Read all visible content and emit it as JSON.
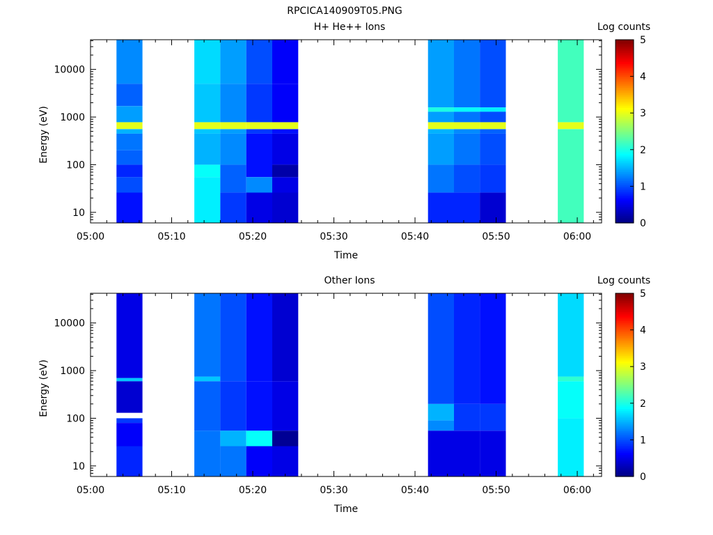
{
  "figure_title": "RPCICA140909T05.PNG",
  "chart_data": [
    {
      "type": "heatmap",
      "title": "H+ He++ Ions",
      "xlabel": "Time",
      "ylabel": "Energy (eV)",
      "xlim": [
        "05:00",
        "06:03"
      ],
      "ylim": [
        6,
        42000
      ],
      "yscale": "log",
      "x_ticks": [
        "05:00",
        "05:10",
        "05:20",
        "05:30",
        "05:40",
        "05:50",
        "06:00"
      ],
      "y_ticks": [
        "10",
        "100",
        "1000",
        "10000"
      ],
      "colorbar": {
        "label": "Log counts",
        "range": [
          0,
          5
        ],
        "ticks": [
          "0",
          "1",
          "2",
          "3",
          "4",
          "5"
        ],
        "colormap": "jet"
      },
      "columns": [
        {
          "start": "05:03:12",
          "end": "05:06:24",
          "bins": [
            {
              "emin": 6,
              "emax": 26,
              "value": 0.7
            },
            {
              "emin": 26,
              "emax": 55,
              "value": 1.0
            },
            {
              "emin": 55,
              "emax": 100,
              "value": 0.8
            },
            {
              "emin": 100,
              "emax": 200,
              "value": 1.1
            },
            {
              "emin": 200,
              "emax": 450,
              "value": 1.2
            },
            {
              "emin": 450,
              "emax": 560,
              "value": 1.5
            },
            {
              "emin": 560,
              "emax": 780,
              "value": 3.0
            },
            {
              "emin": 780,
              "emax": 1700,
              "value": 1.4
            },
            {
              "emin": 1700,
              "emax": 5000,
              "value": 1.1
            },
            {
              "emin": 5000,
              "emax": 42000,
              "value": 1.3
            }
          ]
        },
        {
          "start": "05:12:48",
          "end": "05:16:00",
          "bins": [
            {
              "emin": 6,
              "emax": 55,
              "value": 1.8
            },
            {
              "emin": 55,
              "emax": 100,
              "value": 1.9
            },
            {
              "emin": 100,
              "emax": 450,
              "value": 1.5
            },
            {
              "emin": 450,
              "emax": 560,
              "value": 1.6
            },
            {
              "emin": 560,
              "emax": 780,
              "value": 3.0
            },
            {
              "emin": 780,
              "emax": 5000,
              "value": 1.6
            },
            {
              "emin": 5000,
              "emax": 42000,
              "value": 1.7
            }
          ]
        },
        {
          "start": "05:16:00",
          "end": "05:19:12",
          "bins": [
            {
              "emin": 6,
              "emax": 26,
              "value": 0.9
            },
            {
              "emin": 26,
              "emax": 100,
              "value": 1.1
            },
            {
              "emin": 100,
              "emax": 450,
              "value": 1.3
            },
            {
              "emin": 450,
              "emax": 560,
              "value": 1.4
            },
            {
              "emin": 560,
              "emax": 780,
              "value": 3.0
            },
            {
              "emin": 780,
              "emax": 5000,
              "value": 1.3
            },
            {
              "emin": 5000,
              "emax": 42000,
              "value": 1.4
            }
          ]
        },
        {
          "start": "05:19:12",
          "end": "05:22:24",
          "bins": [
            {
              "emin": 6,
              "emax": 26,
              "value": 0.5
            },
            {
              "emin": 26,
              "emax": 55,
              "value": 1.3
            },
            {
              "emin": 55,
              "emax": 450,
              "value": 0.7
            },
            {
              "emin": 450,
              "emax": 560,
              "value": 0.9
            },
            {
              "emin": 560,
              "emax": 780,
              "value": 3.0
            },
            {
              "emin": 780,
              "emax": 5000,
              "value": 0.9
            },
            {
              "emin": 5000,
              "emax": 42000,
              "value": 1.0
            }
          ]
        },
        {
          "start": "05:22:24",
          "end": "05:25:36",
          "bins": [
            {
              "emin": 6,
              "emax": 26,
              "value": 0.4
            },
            {
              "emin": 26,
              "emax": 55,
              "value": 0.5
            },
            {
              "emin": 55,
              "emax": 100,
              "value": 0.2
            },
            {
              "emin": 100,
              "emax": 450,
              "value": 0.5
            },
            {
              "emin": 450,
              "emax": 560,
              "value": 0.7
            },
            {
              "emin": 560,
              "emax": 780,
              "value": 3.0
            },
            {
              "emin": 780,
              "emax": 5000,
              "value": 0.6
            },
            {
              "emin": 5000,
              "emax": 42000,
              "value": 0.6
            }
          ]
        },
        {
          "start": "05:41:36",
          "end": "05:44:48",
          "bins": [
            {
              "emin": 6,
              "emax": 26,
              "value": 0.8
            },
            {
              "emin": 26,
              "emax": 100,
              "value": 1.2
            },
            {
              "emin": 100,
              "emax": 450,
              "value": 1.4
            },
            {
              "emin": 450,
              "emax": 560,
              "value": 1.5
            },
            {
              "emin": 560,
              "emax": 780,
              "value": 3.0
            },
            {
              "emin": 780,
              "emax": 1300,
              "value": 1.4
            },
            {
              "emin": 1300,
              "emax": 1600,
              "value": 2.0
            },
            {
              "emin": 1600,
              "emax": 42000,
              "value": 1.4
            }
          ]
        },
        {
          "start": "05:44:48",
          "end": "05:48:00",
          "bins": [
            {
              "emin": 6,
              "emax": 26,
              "value": 0.8
            },
            {
              "emin": 26,
              "emax": 100,
              "value": 1.0
            },
            {
              "emin": 100,
              "emax": 450,
              "value": 1.2
            },
            {
              "emin": 450,
              "emax": 560,
              "value": 1.3
            },
            {
              "emin": 560,
              "emax": 780,
              "value": 3.0
            },
            {
              "emin": 780,
              "emax": 1300,
              "value": 1.2
            },
            {
              "emin": 1300,
              "emax": 1600,
              "value": 1.9
            },
            {
              "emin": 1600,
              "emax": 42000,
              "value": 1.2
            }
          ]
        },
        {
          "start": "05:48:00",
          "end": "05:51:12",
          "bins": [
            {
              "emin": 6,
              "emax": 26,
              "value": 0.4
            },
            {
              "emin": 26,
              "emax": 100,
              "value": 0.9
            },
            {
              "emin": 100,
              "emax": 450,
              "value": 1.0
            },
            {
              "emin": 450,
              "emax": 560,
              "value": 1.1
            },
            {
              "emin": 560,
              "emax": 780,
              "value": 3.0
            },
            {
              "emin": 780,
              "emax": 1300,
              "value": 1.0
            },
            {
              "emin": 1300,
              "emax": 1600,
              "value": 1.8
            },
            {
              "emin": 1600,
              "emax": 42000,
              "value": 1.0
            }
          ]
        },
        {
          "start": "05:57:36",
          "end": "06:00:48",
          "bins": [
            {
              "emin": 6,
              "emax": 560,
              "value": 2.2
            },
            {
              "emin": 560,
              "emax": 780,
              "value": 3.0
            },
            {
              "emin": 780,
              "emax": 42000,
              "value": 2.2
            }
          ]
        }
      ]
    },
    {
      "type": "heatmap",
      "title": "Other Ions",
      "xlabel": "Time",
      "ylabel": "Energy (eV)",
      "xlim": [
        "05:00",
        "06:03"
      ],
      "ylim": [
        6,
        42000
      ],
      "yscale": "log",
      "x_ticks": [
        "05:00",
        "05:10",
        "05:20",
        "05:30",
        "05:40",
        "05:50",
        "06:00"
      ],
      "y_ticks": [
        "10",
        "100",
        "1000",
        "10000"
      ],
      "colorbar": {
        "label": "Log counts",
        "range": [
          0,
          5
        ],
        "ticks": [
          "0",
          "1",
          "2",
          "3",
          "4",
          "5"
        ],
        "colormap": "jet"
      },
      "columns": [
        {
          "start": "05:03:12",
          "end": "05:06:24",
          "bins": [
            {
              "emin": 6,
              "emax": 26,
              "value": 0.8
            },
            {
              "emin": 26,
              "emax": 80,
              "value": 0.6
            },
            {
              "emin": 80,
              "emax": 100,
              "value": 0.9
            },
            {
              "emin": 130,
              "emax": 600,
              "value": 0.4
            },
            {
              "emin": 600,
              "emax": 700,
              "value": 1.6
            },
            {
              "emin": 700,
              "emax": 42000,
              "value": 0.5
            }
          ]
        },
        {
          "start": "05:12:48",
          "end": "05:16:00",
          "bins": [
            {
              "emin": 6,
              "emax": 55,
              "value": 1.2
            },
            {
              "emin": 55,
              "emax": 600,
              "value": 1.1
            },
            {
              "emin": 600,
              "emax": 750,
              "value": 1.6
            },
            {
              "emin": 750,
              "emax": 42000,
              "value": 1.2
            }
          ]
        },
        {
          "start": "05:16:00",
          "end": "05:19:12",
          "bins": [
            {
              "emin": 6,
              "emax": 26,
              "value": 1.2
            },
            {
              "emin": 26,
              "emax": 55,
              "value": 1.5
            },
            {
              "emin": 55,
              "emax": 600,
              "value": 0.9
            },
            {
              "emin": 600,
              "emax": 42000,
              "value": 1.0
            }
          ]
        },
        {
          "start": "05:19:12",
          "end": "05:22:24",
          "bins": [
            {
              "emin": 6,
              "emax": 26,
              "value": 0.6
            },
            {
              "emin": 26,
              "emax": 55,
              "value": 1.9
            },
            {
              "emin": 55,
              "emax": 600,
              "value": 0.7
            },
            {
              "emin": 600,
              "emax": 42000,
              "value": 0.7
            }
          ]
        },
        {
          "start": "05:22:24",
          "end": "05:25:36",
          "bins": [
            {
              "emin": 6,
              "emax": 26,
              "value": 0.5
            },
            {
              "emin": 26,
              "emax": 55,
              "value": 0.1
            },
            {
              "emin": 55,
              "emax": 600,
              "value": 0.5
            },
            {
              "emin": 600,
              "emax": 42000,
              "value": 0.4
            }
          ]
        },
        {
          "start": "05:41:36",
          "end": "05:44:48",
          "bins": [
            {
              "emin": 6,
              "emax": 55,
              "value": 0.5
            },
            {
              "emin": 55,
              "emax": 90,
              "value": 1.3
            },
            {
              "emin": 90,
              "emax": 200,
              "value": 1.5
            },
            {
              "emin": 200,
              "emax": 42000,
              "value": 1.0
            }
          ]
        },
        {
          "start": "05:44:48",
          "end": "05:48:00",
          "bins": [
            {
              "emin": 6,
              "emax": 55,
              "value": 0.5
            },
            {
              "emin": 55,
              "emax": 200,
              "value": 0.9
            },
            {
              "emin": 200,
              "emax": 42000,
              "value": 0.8
            }
          ]
        },
        {
          "start": "05:48:00",
          "end": "05:51:12",
          "bins": [
            {
              "emin": 6,
              "emax": 55,
              "value": 0.5
            },
            {
              "emin": 55,
              "emax": 200,
              "value": 0.9
            },
            {
              "emin": 200,
              "emax": 42000,
              "value": 0.7
            }
          ]
        },
        {
          "start": "05:57:36",
          "end": "06:00:48",
          "bins": [
            {
              "emin": 6,
              "emax": 100,
              "value": 1.8
            },
            {
              "emin": 100,
              "emax": 600,
              "value": 1.9
            },
            {
              "emin": 600,
              "emax": 750,
              "value": 2.1
            },
            {
              "emin": 750,
              "emax": 42000,
              "value": 1.7
            }
          ]
        }
      ]
    }
  ]
}
